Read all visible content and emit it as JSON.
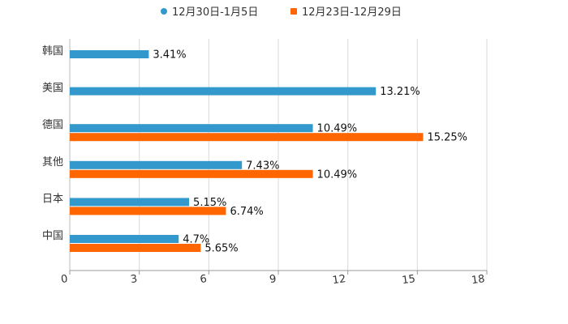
{
  "chart_data": {
    "type": "bar",
    "orientation": "horizontal",
    "title": "",
    "xlabel": "",
    "ylabel": "",
    "xlim": [
      0,
      18
    ],
    "x_ticks": [
      "0",
      "3",
      "6",
      "9",
      "12",
      "15",
      "18"
    ],
    "grid": true,
    "legend_position": "top-center",
    "categories": [
      "韩国",
      "美国",
      "德国",
      "其他",
      "日本",
      "中国"
    ],
    "series": [
      {
        "name": "12月30日-1月5日",
        "color": "#3399cc",
        "values": [
          3.41,
          13.21,
          10.49,
          7.43,
          5.15,
          4.7
        ],
        "labels": [
          "3.41%",
          "13.21%",
          "10.49%",
          "7.43%",
          "5.15%",
          "4.7%"
        ]
      },
      {
        "name": "12月23日-12月29日",
        "color": "#ff6600",
        "values": [
          null,
          null,
          15.25,
          10.49,
          6.74,
          5.65
        ],
        "labels": [
          "",
          "",
          "15.25%",
          "10.49%",
          "6.74%",
          "5.65%"
        ]
      }
    ]
  }
}
